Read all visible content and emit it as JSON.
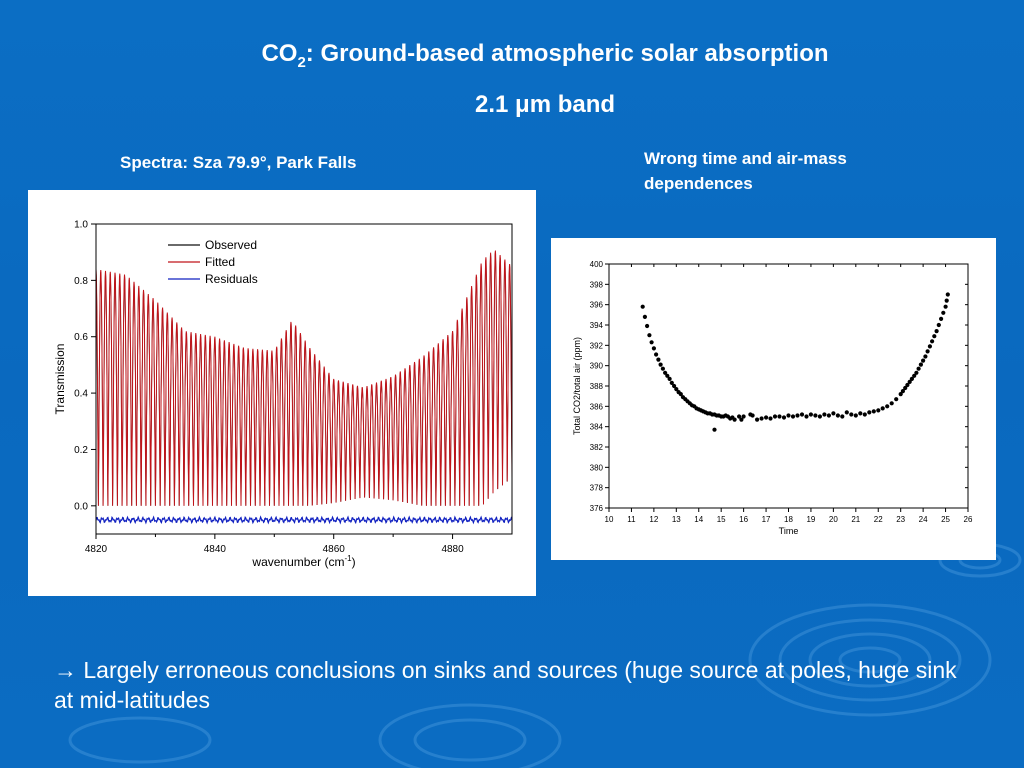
{
  "slide": {
    "title_prefix": "CO",
    "title_sub": "2",
    "title_rest": ": Ground-based atmospheric solar absorption",
    "subtitle_pre": "2.1 ",
    "subtitle_mu": "μ",
    "subtitle_post": "m band",
    "caption_left": "Spectra: Sza 79.9°, Park Falls",
    "caption_right": "Wrong time and air-mass dependences",
    "bottom_text": "→ Largely erroneous conclusions on sinks and sources (huge source at poles, huge sink at mid-latitudes"
  },
  "colors": {
    "background": "#0b6ec4",
    "observed": "#111111",
    "fitted": "#c0141a",
    "residuals": "#1020c0",
    "points": "#000000"
  },
  "chart_data": [
    {
      "type": "line",
      "xlabel": "wavenumber (cm-1)",
      "xlabel_main": "wavenumber (cm",
      "xlabel_sup": "-1",
      "xlabel_close": ")",
      "ylabel": "Transmission",
      "xlim": [
        4820,
        4890
      ],
      "ylim": [
        -0.1,
        1.0
      ],
      "xticks": [
        4820,
        4840,
        4860,
        4880
      ],
      "yticks": [
        0.0,
        0.2,
        0.4,
        0.6,
        0.8,
        1.0
      ],
      "xtick_labels": [
        "4820",
        "4840",
        "4860",
        "4880"
      ],
      "ytick_labels": [
        "0.0",
        "0.2",
        "0.4",
        "0.6",
        "0.8",
        "1.0"
      ],
      "legend": [
        "Observed",
        "Fitted",
        "Residuals"
      ],
      "legend_position": "top",
      "line_spacing_cm-1": 0.8,
      "envelope": {
        "x": [
          4820,
          4825,
          4830,
          4835,
          4840,
          4845,
          4850,
          4853,
          4856,
          4860,
          4865,
          4870,
          4875,
          4880,
          4885,
          4887,
          4890
        ],
        "peak": [
          0.84,
          0.82,
          0.73,
          0.62,
          0.6,
          0.56,
          0.55,
          0.66,
          0.56,
          0.45,
          0.42,
          0.46,
          0.53,
          0.62,
          0.87,
          0.91,
          0.85
        ],
        "trough": [
          0.0,
          0.0,
          0.0,
          0.0,
          0.0,
          0.0,
          0.0,
          0.0,
          0.0,
          0.01,
          0.03,
          0.02,
          0.0,
          0.0,
          0.0,
          0.05,
          0.1
        ]
      },
      "residuals_level": -0.05,
      "residuals_amplitude": 0.01
    },
    {
      "type": "scatter",
      "xlabel": "Time",
      "ylabel": "Total CO2/total air (ppm)",
      "xlim": [
        10,
        26
      ],
      "ylim": [
        376,
        400
      ],
      "xticks": [
        10,
        11,
        12,
        13,
        14,
        15,
        16,
        17,
        18,
        19,
        20,
        21,
        22,
        23,
        24,
        25,
        26
      ],
      "yticks": [
        376,
        378,
        380,
        382,
        384,
        386,
        388,
        390,
        392,
        394,
        396,
        398,
        400
      ],
      "xtick_labels": [
        "10",
        "11",
        "12",
        "13",
        "14",
        "15",
        "16",
        "17",
        "18",
        "19",
        "20",
        "21",
        "22",
        "23",
        "24",
        "25",
        "26"
      ],
      "ytick_labels": [
        "376",
        "378",
        "380",
        "382",
        "384",
        "386",
        "388",
        "390",
        "392",
        "394",
        "396",
        "398",
        "400"
      ],
      "x": [
        11.5,
        11.6,
        11.7,
        11.8,
        11.9,
        12.0,
        12.1,
        12.2,
        12.3,
        12.4,
        12.5,
        12.6,
        12.7,
        12.8,
        12.9,
        13.0,
        13.1,
        13.2,
        13.3,
        13.4,
        13.5,
        13.6,
        13.7,
        13.8,
        13.9,
        14.0,
        14.1,
        14.2,
        14.3,
        14.4,
        14.5,
        14.6,
        14.7,
        14.8,
        14.9,
        15.0,
        15.1,
        15.2,
        15.3,
        15.4,
        15.5,
        15.6,
        15.8,
        15.9,
        16.0,
        16.3,
        16.4,
        16.6,
        16.8,
        17.0,
        17.2,
        17.4,
        17.6,
        17.8,
        18.0,
        18.2,
        18.4,
        18.6,
        18.8,
        19.0,
        19.2,
        19.4,
        19.6,
        19.8,
        20.0,
        20.2,
        20.4,
        20.6,
        20.8,
        21.0,
        21.2,
        21.4,
        21.6,
        21.8,
        22.0,
        22.2,
        22.4,
        22.6,
        22.8,
        23.0,
        23.1,
        23.2,
        23.3,
        23.4,
        23.5,
        23.6,
        23.7,
        23.8,
        23.9,
        24.0,
        24.1,
        24.2,
        24.3,
        24.4,
        24.5,
        24.6,
        24.7,
        24.8,
        24.9,
        25.0,
        25.05,
        25.1,
        14.7
      ],
      "y": [
        395.8,
        394.8,
        393.9,
        393.0,
        392.3,
        391.7,
        391.1,
        390.6,
        390.1,
        389.7,
        389.3,
        389.0,
        388.7,
        388.3,
        388.0,
        387.7,
        387.4,
        387.2,
        386.9,
        386.7,
        386.5,
        386.3,
        386.1,
        386.0,
        385.8,
        385.7,
        385.6,
        385.5,
        385.4,
        385.3,
        385.3,
        385.2,
        385.2,
        385.1,
        385.1,
        385.0,
        385.0,
        385.1,
        385.0,
        384.8,
        384.9,
        384.7,
        385.0,
        384.7,
        385.0,
        385.2,
        385.1,
        384.7,
        384.8,
        384.9,
        384.8,
        385.0,
        385.0,
        384.9,
        385.1,
        385.0,
        385.1,
        385.2,
        385.0,
        385.2,
        385.1,
        385.0,
        385.2,
        385.1,
        385.3,
        385.1,
        385.0,
        385.4,
        385.2,
        385.1,
        385.3,
        385.2,
        385.4,
        385.5,
        385.6,
        385.8,
        386.0,
        386.3,
        386.7,
        387.2,
        387.5,
        387.8,
        388.1,
        388.4,
        388.7,
        389.0,
        389.3,
        389.7,
        390.1,
        390.5,
        390.9,
        391.4,
        391.9,
        392.4,
        392.9,
        393.4,
        394.0,
        394.6,
        395.2,
        395.8,
        396.4,
        397.0,
        383.7
      ]
    }
  ]
}
